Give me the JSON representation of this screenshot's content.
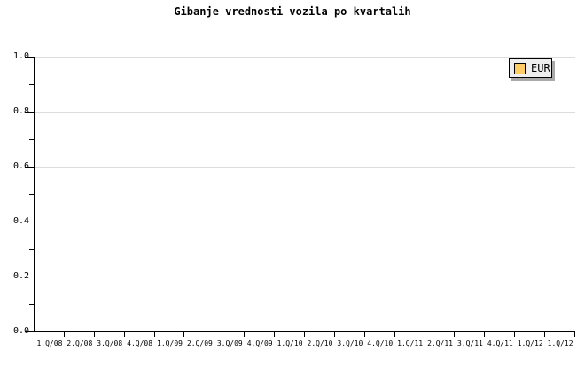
{
  "chart_data": {
    "type": "line",
    "title": "Gibanje vrednosti vozila po kvartalih",
    "categories": [
      "1.Q/08",
      "2.Q/08",
      "3.Q/08",
      "4.Q/08",
      "1.Q/09",
      "2.Q/09",
      "3.Q/09",
      "4.Q/09",
      "1.Q/10",
      "2.Q/10",
      "3.Q/10",
      "4.Q/10",
      "1.Q/11",
      "2.Q/11",
      "3.Q/11",
      "4.Q/11",
      "1.Q/12",
      "1.Q/12"
    ],
    "series": [
      {
        "name": "EUR",
        "color": "#ffcc66",
        "values": []
      }
    ],
    "xlabel": "",
    "ylabel": "",
    "ylim": [
      0.0,
      1.0
    ],
    "ytick_labels": [
      "1.0",
      "0.8",
      "0.6",
      "0.4",
      "0.2",
      "0.0"
    ],
    "ytick_minor_interval": 0.1,
    "grid": "horizontal-major-only",
    "legend": {
      "position": "top-right",
      "entries": [
        {
          "label": "EUR",
          "swatch_color": "#ffcc66"
        }
      ]
    },
    "colors": {
      "background": "#ffffff",
      "axis": "#000000",
      "gridline": "#dcdcdc",
      "legend_background": "#eeeeee",
      "legend_border": "#000000",
      "legend_shadow": "#a9a9a9",
      "text": "#000000"
    },
    "note": "plot area contains no drawn data points"
  }
}
